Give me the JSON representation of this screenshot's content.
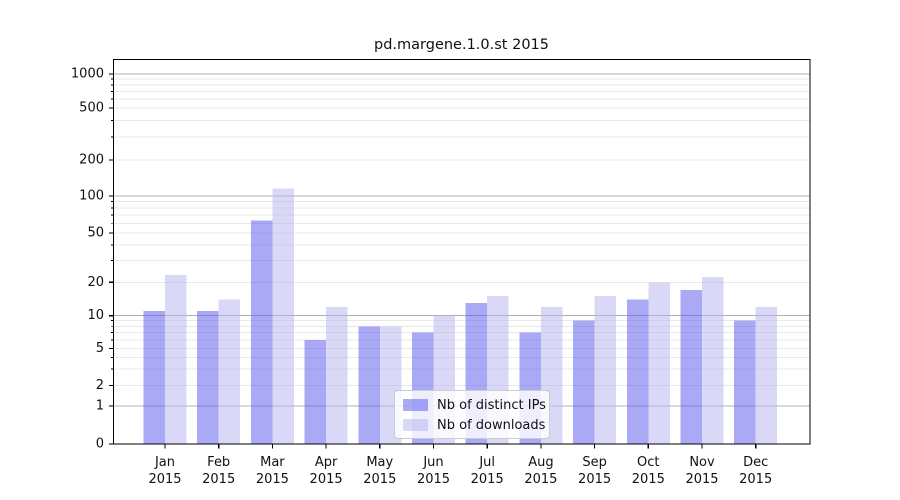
{
  "chart_data": {
    "type": "bar",
    "title": "pd.margene.1.0.st 2015",
    "categories": [
      "Jan 2015",
      "Feb 2015",
      "Mar 2015",
      "Apr 2015",
      "May 2015",
      "Jun 2015",
      "Jul 2015",
      "Aug 2015",
      "Sep 2015",
      "Oct 2015",
      "Nov 2015",
      "Dec 2015"
    ],
    "x_tick_month_labels": [
      "Jan",
      "Feb",
      "Mar",
      "Apr",
      "May",
      "Jun",
      "Jul",
      "Aug",
      "Sep",
      "Oct",
      "Nov",
      "Dec"
    ],
    "x_tick_year_label": "2015",
    "series": [
      {
        "name": "Nb of distinct IPs",
        "color": "#5454ee",
        "opacity": 0.5,
        "values": [
          11,
          11,
          63,
          6,
          8,
          7,
          13,
          7,
          9,
          14,
          17,
          9
        ]
      },
      {
        "name": "Nb of downloads",
        "color": "#b4b4f0",
        "opacity": 0.5,
        "values": [
          23,
          14,
          115,
          12,
          8,
          10,
          15,
          12,
          15,
          20,
          22,
          12
        ]
      }
    ],
    "y_axis": {
      "scale": "symlog (log above 1, linear 0-1)",
      "tick_values": [
        0,
        1,
        2,
        5,
        10,
        20,
        50,
        100,
        200,
        500,
        1000
      ],
      "tick_labels": [
        "0",
        "1",
        "2",
        "5",
        "10",
        "20",
        "50",
        "100",
        "200",
        "500",
        "1000"
      ],
      "ylim": [
        0,
        1300
      ]
    },
    "grid": {
      "major_values": [
        1,
        10,
        100,
        1000
      ],
      "minor_values": [
        2,
        3,
        4,
        5,
        6,
        7,
        8,
        9,
        20,
        30,
        40,
        50,
        60,
        70,
        80,
        90,
        200,
        300,
        400,
        500,
        600,
        700,
        800,
        900
      ]
    },
    "legend": {
      "position": "lower center",
      "items": [
        "Nb of distinct IPs",
        "Nb of downloads"
      ]
    }
  },
  "colors": {
    "background": "#ffffff",
    "bar_distinct_ips": "#5454ee",
    "bar_downloads": "#b4b4f0",
    "grid_major": "#b0b0b0",
    "grid_minor": "#e8e8e8",
    "axis_spine": "#000000",
    "text": "#111111",
    "legend_border": "#cccccc",
    "legend_background": "rgba(255,255,255,0.8)"
  }
}
